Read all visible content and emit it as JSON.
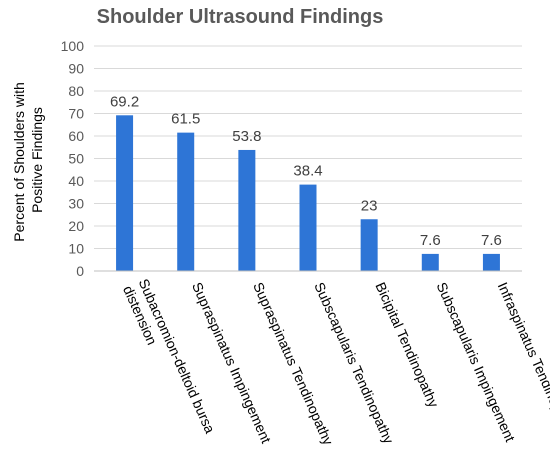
{
  "chart_data": {
    "type": "bar",
    "title": "Shoulder Ultrasound Findings",
    "ylabel_lines": [
      "Percent of Shoulders with",
      "Positive Findings"
    ],
    "xlabel": "",
    "categories": [
      [
        "Subacromion-deltoid bursa",
        "distension"
      ],
      [
        "Supraspinatus Impingement"
      ],
      [
        "Supraspinatus Tendinopathy"
      ],
      [
        "Subscapularis Tendinopathy"
      ],
      [
        "Bicipital Tendinopathy"
      ],
      [
        "Subscapularis Impingement"
      ],
      [
        "Infraspinatus Tendinopathy"
      ]
    ],
    "values": [
      69.2,
      61.5,
      53.8,
      38.4,
      23,
      7.6,
      7.6
    ],
    "value_labels": [
      "69.2",
      "61.5",
      "53.8",
      "38.4",
      "23",
      "7.6",
      "7.6"
    ],
    "ylim": [
      0,
      100
    ],
    "yticks": [
      0,
      10,
      20,
      30,
      40,
      50,
      60,
      70,
      80,
      90,
      100
    ],
    "grid": true,
    "bar_color": "#2e75d6",
    "legend": "none"
  }
}
